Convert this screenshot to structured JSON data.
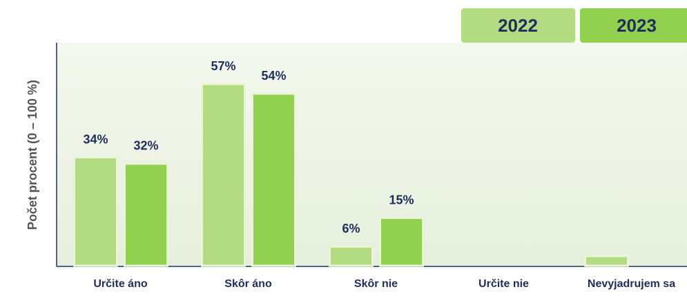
{
  "chart_data": {
    "type": "bar",
    "y_label": "Počet procent (0 – 100 %)",
    "categories": [
      "Určite áno",
      "Skôr áno",
      "Skôr nie",
      "Určite nie",
      "Nevyjadrujem sa"
    ],
    "series": [
      {
        "name": "2022",
        "color": "#b3dc82",
        "values": [
          34,
          57,
          6,
          null,
          3
        ],
        "value_labels": [
          "34%",
          "57%",
          "6%",
          null,
          null
        ]
      },
      {
        "name": "2023",
        "color": "#92d050",
        "values": [
          32,
          54,
          15,
          null,
          null
        ],
        "value_labels": [
          "32%",
          "54%",
          "15%",
          null,
          null
        ]
      }
    ],
    "ylim": [
      0,
      70
    ],
    "legend": "top-right"
  }
}
